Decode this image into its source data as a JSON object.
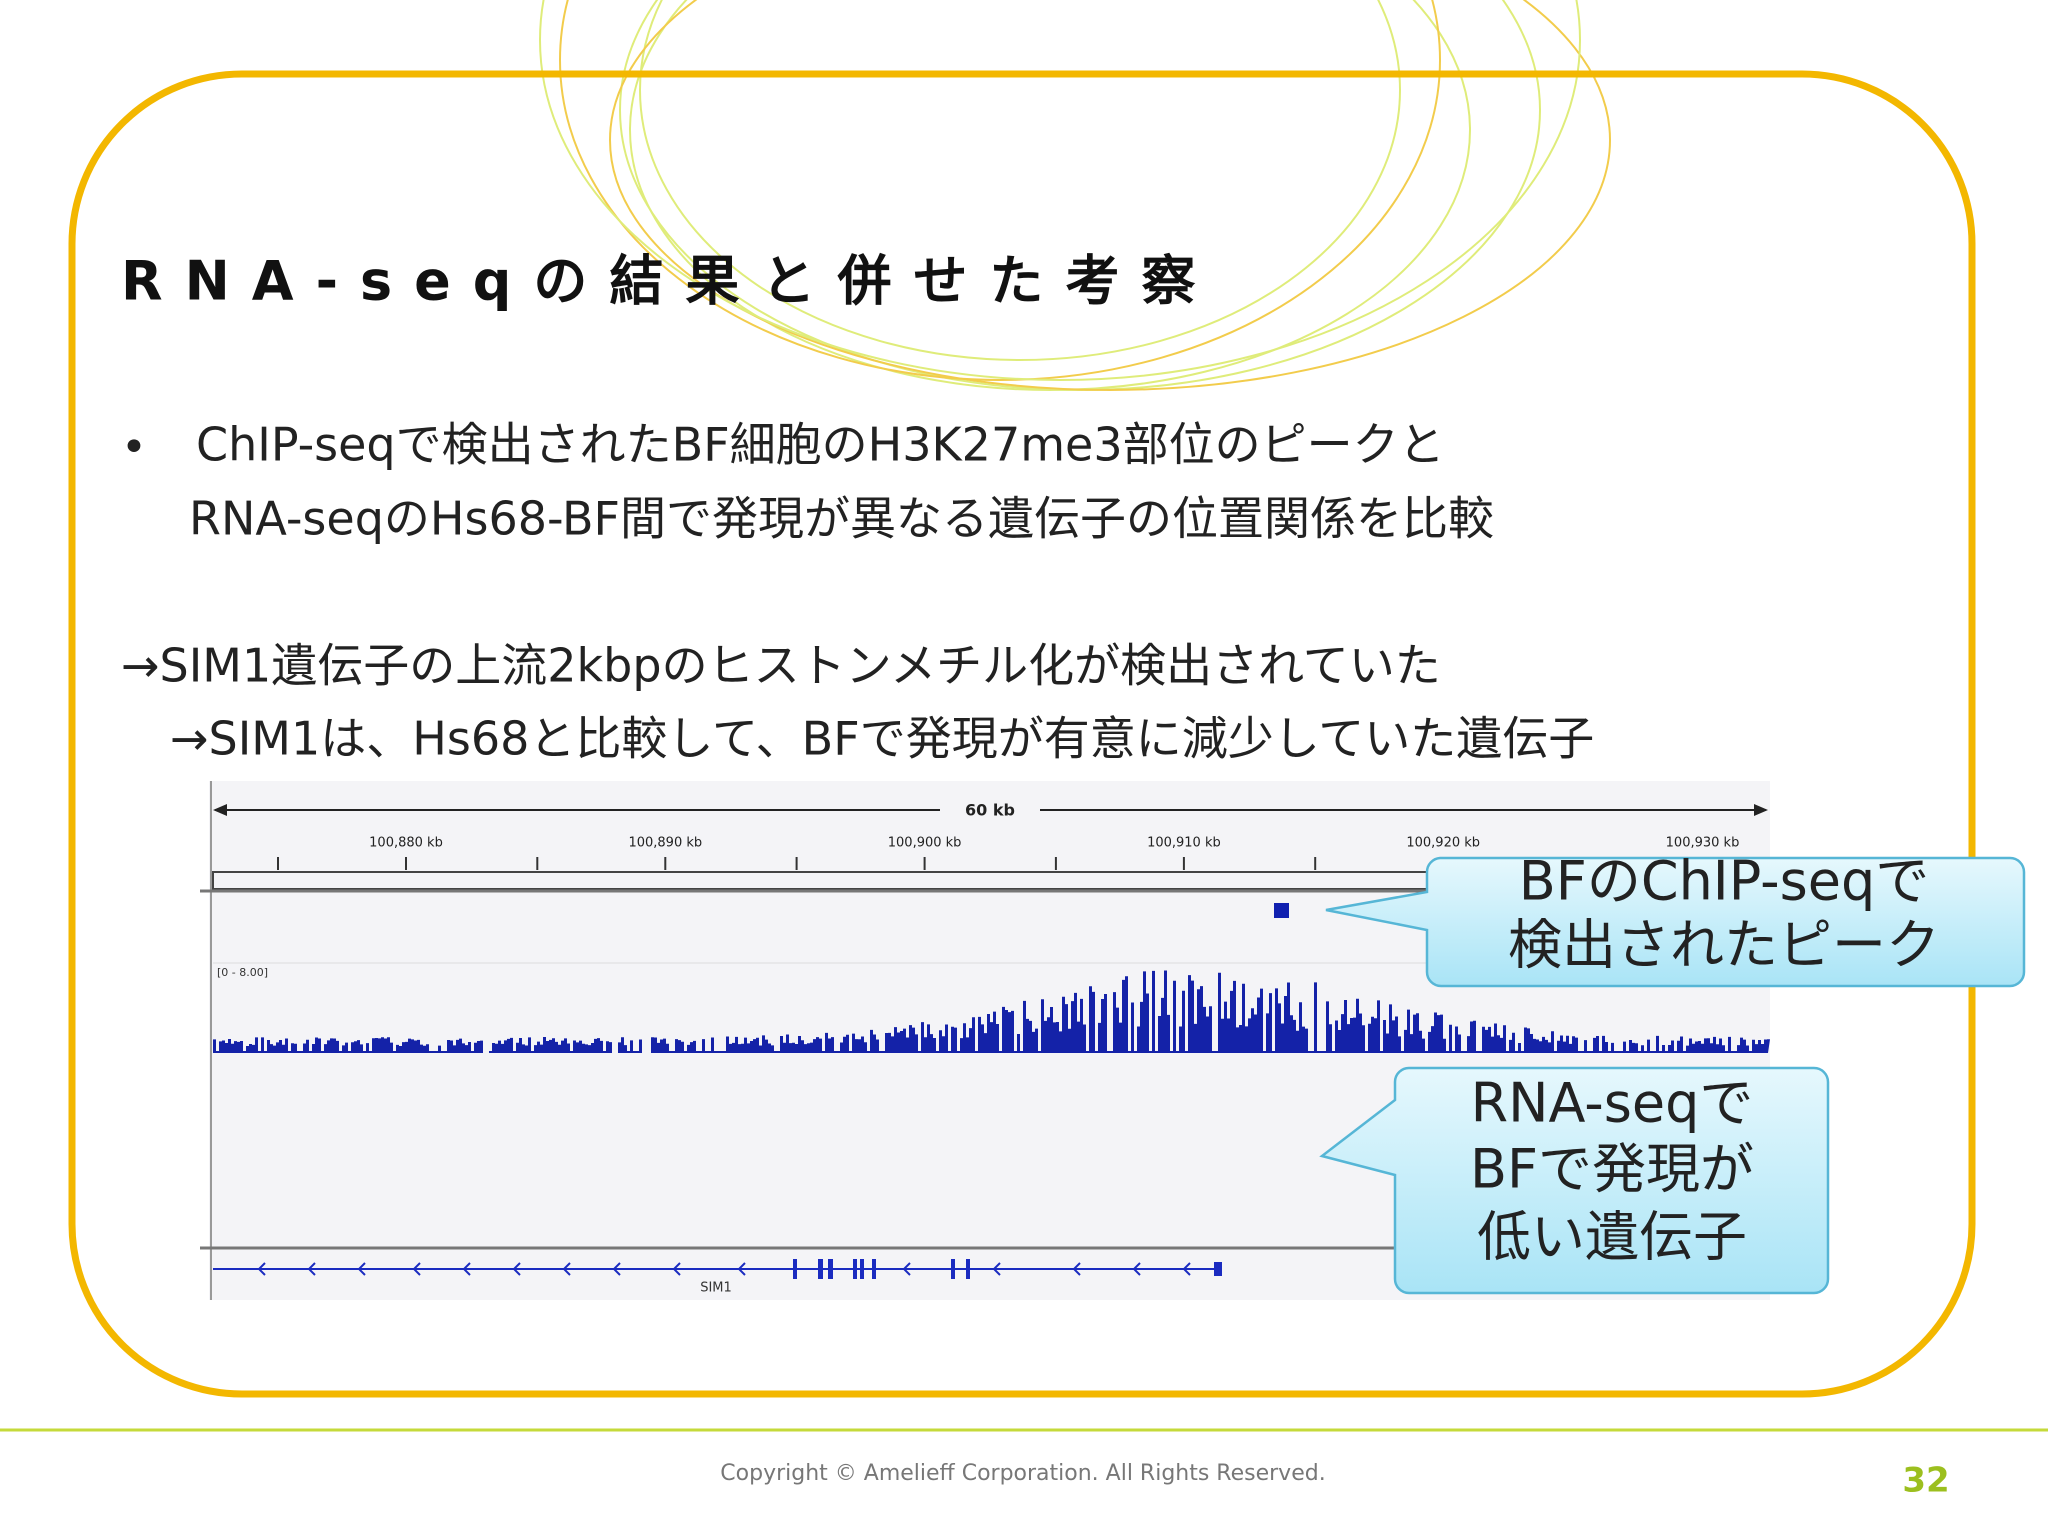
{
  "title": "RNA-seqの結果と併せた考察",
  "bullet": {
    "marker": "•",
    "lines": [
      "ChIP-seqで検出されたBF細胞のH3K27me3部位のピークと",
      "RNA-seqのHs68-BF間で発現が異なる遺伝子の位置関係を比較"
    ]
  },
  "findings": [
    "→SIM1遺伝子の上流2kbpのヒストンメチル化が検出されていた",
    "→SIM1は、Hs68と比較して、BFで発現が有意に減少していた遺伝子"
  ],
  "browser": {
    "scale_label": "60 kb",
    "ticks": [
      "100,880 kb",
      "100,890 kb",
      "100,900 kb",
      "100,910 kb",
      "100,920 kb",
      "100,930 kb"
    ],
    "range_label": "[0 - 8.00]",
    "gene_label": "SIM1"
  },
  "callouts": [
    {
      "lines": [
        "BFのChIP-seqで",
        "検出されたピーク"
      ]
    },
    {
      "lines": [
        "RNA-seqで",
        "BFで発現が",
        "低い遺伝子"
      ]
    }
  ],
  "footer": {
    "copyright": "Copyright © Amelieff Corporation. All Rights Reserved.",
    "page": "32"
  }
}
